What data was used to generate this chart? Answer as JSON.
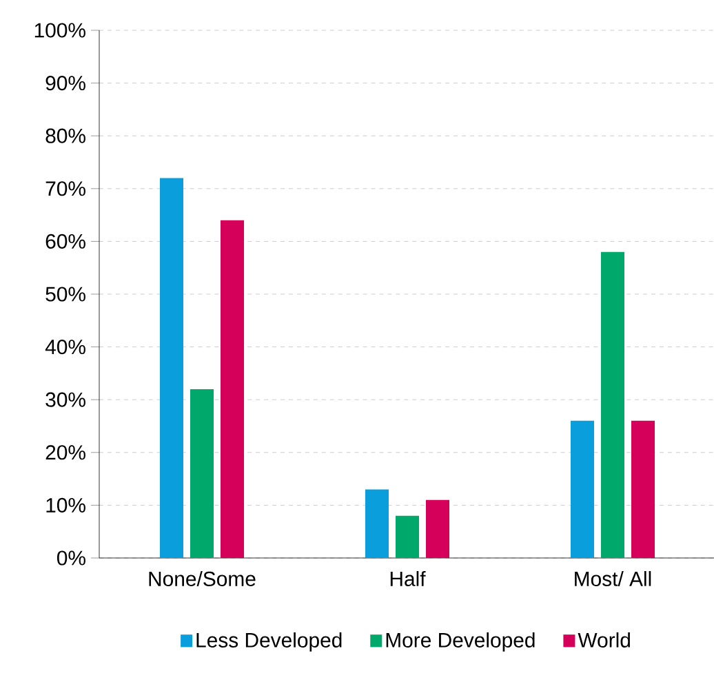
{
  "chart_data": {
    "type": "bar",
    "categories": [
      "None/Some",
      "Half",
      "Most/ All"
    ],
    "series": [
      {
        "name": "Less Developed",
        "color": "#0a9fdc",
        "values": [
          72,
          13,
          26
        ]
      },
      {
        "name": "More Developed",
        "color": "#00a86b",
        "values": [
          32,
          8,
          58
        ]
      },
      {
        "name": "World",
        "color": "#d4005a",
        "values": [
          64,
          11,
          26
        ]
      }
    ],
    "ylim": [
      0,
      100
    ],
    "yticks": [
      {
        "value": 0,
        "label": "0%"
      },
      {
        "value": 10,
        "label": "10%"
      },
      {
        "value": 20,
        "label": "20%"
      },
      {
        "value": 30,
        "label": "30%"
      },
      {
        "value": 40,
        "label": "40%"
      },
      {
        "value": 50,
        "label": "50%"
      },
      {
        "value": 60,
        "label": "60%"
      },
      {
        "value": 70,
        "label": "70%"
      },
      {
        "value": 80,
        "label": "80%"
      },
      {
        "value": 90,
        "label": "90%"
      },
      {
        "value": 100,
        "label": "100%"
      }
    ],
    "grid": "y",
    "legend": "bottom"
  }
}
